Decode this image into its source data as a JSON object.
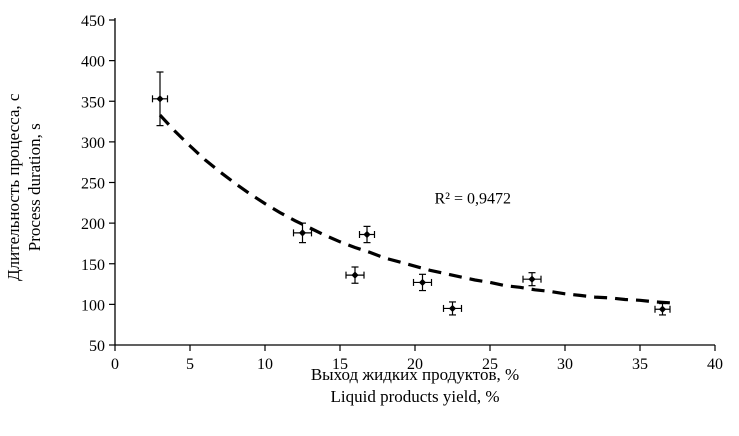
{
  "chart_data": {
    "type": "scatter",
    "title": "",
    "xlabel_ru": "Выход жидких продуктов, %",
    "xlabel_en": "Liquid products yield, %",
    "ylabel_ru": "Длительность процесса, с",
    "ylabel_en": "Process duration, s",
    "xlim": [
      0,
      40
    ],
    "ylim": [
      50,
      450
    ],
    "x_ticks": [
      0,
      5,
      10,
      15,
      20,
      25,
      30,
      35,
      40
    ],
    "y_ticks": [
      50,
      100,
      150,
      200,
      250,
      300,
      350,
      400,
      450
    ],
    "grid": false,
    "legend": "none",
    "annotation": {
      "text": "R² = 0,9472",
      "x": 21.3,
      "y": 224
    },
    "points": [
      {
        "x": 3.0,
        "y": 353,
        "xerr": 0.5,
        "yerr": 33
      },
      {
        "x": 12.5,
        "y": 188,
        "xerr": 0.6,
        "yerr": 12
      },
      {
        "x": 16.0,
        "y": 136,
        "xerr": 0.6,
        "yerr": 10
      },
      {
        "x": 16.8,
        "y": 186,
        "xerr": 0.5,
        "yerr": 10
      },
      {
        "x": 20.5,
        "y": 127,
        "xerr": 0.6,
        "yerr": 10
      },
      {
        "x": 22.5,
        "y": 95,
        "xerr": 0.6,
        "yerr": 8
      },
      {
        "x": 27.8,
        "y": 131,
        "xerr": 0.6,
        "yerr": 8
      },
      {
        "x": 36.5,
        "y": 94,
        "xerr": 0.5,
        "yerr": 7
      }
    ],
    "trendline": {
      "style": "dashed",
      "color": "#000000",
      "points": [
        [
          3,
          333
        ],
        [
          4,
          313
        ],
        [
          5,
          295
        ],
        [
          6,
          278
        ],
        [
          7,
          263
        ],
        [
          8,
          249
        ],
        [
          9,
          236
        ],
        [
          10,
          224
        ],
        [
          11,
          213
        ],
        [
          12,
          203
        ],
        [
          13,
          194
        ],
        [
          14,
          185
        ],
        [
          15,
          177
        ],
        [
          16,
          170
        ],
        [
          17,
          164
        ],
        [
          18,
          157
        ],
        [
          19,
          152
        ],
        [
          20,
          147
        ],
        [
          21,
          142
        ],
        [
          22,
          138
        ],
        [
          23,
          134
        ],
        [
          24,
          130
        ],
        [
          25,
          127
        ],
        [
          26,
          123
        ],
        [
          27,
          121
        ],
        [
          28,
          118
        ],
        [
          29,
          116
        ],
        [
          30,
          113
        ],
        [
          31,
          111
        ],
        [
          32,
          109
        ],
        [
          33,
          108
        ],
        [
          34,
          106
        ],
        [
          35,
          105
        ],
        [
          36,
          103
        ],
        [
          37,
          102
        ]
      ]
    }
  }
}
